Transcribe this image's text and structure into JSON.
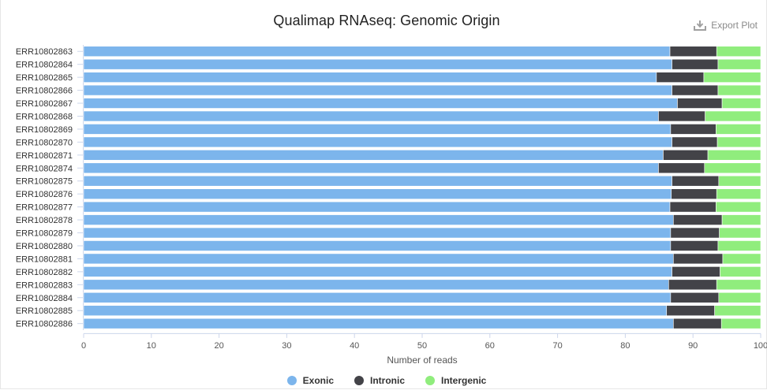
{
  "chart_data": {
    "type": "bar",
    "orientation": "horizontal",
    "stacked": true,
    "title": "Qualimap RNAseq: Genomic Origin",
    "xlabel": "Number of reads",
    "ylabel": "",
    "xlim": [
      0,
      100
    ],
    "xticks": [
      0,
      10,
      20,
      30,
      40,
      50,
      60,
      70,
      80,
      90,
      100
    ],
    "grid": false,
    "legend_position": "bottom",
    "categories": [
      "ERR10802863",
      "ERR10802864",
      "ERR10802865",
      "ERR10802866",
      "ERR10802867",
      "ERR10802868",
      "ERR10802869",
      "ERR10802870",
      "ERR10802871",
      "ERR10802874",
      "ERR10802875",
      "ERR10802876",
      "ERR10802877",
      "ERR10802878",
      "ERR10802879",
      "ERR10802880",
      "ERR10802881",
      "ERR10802882",
      "ERR10802883",
      "ERR10802884",
      "ERR10802885",
      "ERR10802886"
    ],
    "series": [
      {
        "name": "Exonic",
        "color": "#7cb5ec",
        "values": [
          86.6,
          86.9,
          84.6,
          86.9,
          87.7,
          84.9,
          86.7,
          86.9,
          85.6,
          84.9,
          86.9,
          86.8,
          86.6,
          87.1,
          86.7,
          86.7,
          87.1,
          86.9,
          86.4,
          86.7,
          86.1,
          87.1
        ]
      },
      {
        "name": "Intronic",
        "color": "#434348",
        "values": [
          6.9,
          6.8,
          7.0,
          6.8,
          6.6,
          6.9,
          6.7,
          6.7,
          6.6,
          6.8,
          6.9,
          6.7,
          6.8,
          7.2,
          7.2,
          7.0,
          7.3,
          7.1,
          7.1,
          7.1,
          7.1,
          7.1
        ]
      },
      {
        "name": "Intergenic",
        "color": "#90ed7d",
        "values": [
          6.5,
          6.3,
          8.4,
          6.3,
          5.7,
          8.2,
          6.6,
          6.4,
          7.8,
          8.3,
          6.2,
          6.5,
          6.6,
          5.7,
          6.1,
          6.3,
          5.6,
          6.0,
          6.5,
          6.2,
          6.8,
          5.8
        ]
      }
    ]
  },
  "toolbar": {
    "export_label": "Export Plot"
  }
}
